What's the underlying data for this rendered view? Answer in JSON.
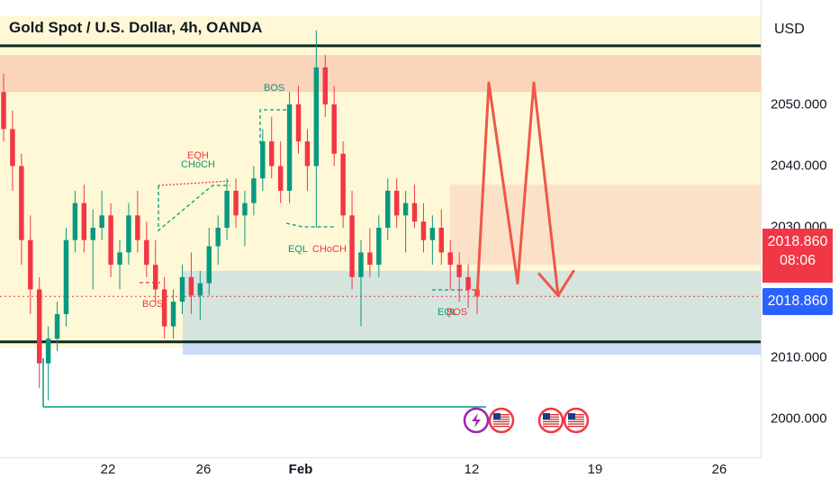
{
  "header": {
    "title": "Gold Spot / U.S. Dollar, 4h, OANDA"
  },
  "price_axis": {
    "currency": "USD",
    "ticks": [
      "2050.000",
      "2040.000",
      "2030.000",
      "2010.000",
      "2000.000"
    ],
    "last_price_label": "2018.860",
    "countdown_label": "08:06",
    "crosshair_price_label": "2018.860"
  },
  "time_axis": {
    "ticks": [
      "22",
      "26",
      "Feb",
      "12",
      "19",
      "26"
    ]
  },
  "annotations": {
    "bos_top": "BOS",
    "eqh": "EQH",
    "choch_left": "CHoCH",
    "bos_left": "BOS",
    "eql_mid": "EQL",
    "choch_mid": "CHoCH",
    "eql_right": "EQL",
    "bos_right": "BOS"
  },
  "event_icons": [
    "lightning-event-icon",
    "us-flag-event-icon",
    "us-flag-event-icon",
    "us-flag-event-icon"
  ],
  "colors": {
    "up_candle": "#089981",
    "down_candle": "#f23645",
    "premium_zone": "#f8c9b0",
    "discount_zone": "#c8dde0",
    "range_background": "#fff8d6",
    "projection": "#ef5747",
    "last_price": "#f23645",
    "crosshair_price": "#2962ff"
  },
  "chart_data": {
    "type": "candlestick",
    "symbol": "XAUUSD",
    "timeframe": "4h",
    "ylim": [
      1996,
      2062
    ],
    "y_ticks": [
      2000,
      2010,
      2030,
      2040,
      2050
    ],
    "x_ticks": [
      "22",
      "26",
      "Feb",
      "12",
      "19",
      "26"
    ],
    "last_price": 2018.86,
    "grid": false,
    "candles": [
      [
        2052,
        2055,
        2044,
        2046
      ],
      [
        2046,
        2049,
        2036,
        2040
      ],
      [
        2040,
        2042,
        2024,
        2028
      ],
      [
        2028,
        2032,
        2016,
        2020
      ],
      [
        2020,
        2022,
        2004,
        2008
      ],
      [
        2008,
        2014,
        2002,
        2012
      ],
      [
        2012,
        2018,
        2010,
        2016
      ],
      [
        2016,
        2030,
        2014,
        2028
      ],
      [
        2028,
        2036,
        2026,
        2034
      ],
      [
        2034,
        2037,
        2026,
        2028
      ],
      [
        2028,
        2033,
        2020,
        2030
      ],
      [
        2030,
        2036,
        2028,
        2032
      ],
      [
        2032,
        2034,
        2022,
        2024
      ],
      [
        2024,
        2028,
        2020,
        2026
      ],
      [
        2026,
        2034,
        2024,
        2032
      ],
      [
        2032,
        2036,
        2026,
        2028
      ],
      [
        2028,
        2031,
        2022,
        2024
      ],
      [
        2024,
        2028,
        2018,
        2020
      ],
      [
        2020,
        2022,
        2012,
        2014
      ],
      [
        2014,
        2020,
        2012,
        2018
      ],
      [
        2018,
        2024,
        2016,
        2022
      ],
      [
        2022,
        2026,
        2016,
        2019
      ],
      [
        2019,
        2023,
        2015,
        2021
      ],
      [
        2021,
        2030,
        2019,
        2027
      ],
      [
        2027,
        2032,
        2024,
        2030
      ],
      [
        2030,
        2038,
        2028,
        2036
      ],
      [
        2036,
        2038,
        2030,
        2032
      ],
      [
        2032,
        2036,
        2027,
        2034
      ],
      [
        2034,
        2040,
        2032,
        2038
      ],
      [
        2038,
        2046,
        2036,
        2044
      ],
      [
        2044,
        2048,
        2038,
        2040
      ],
      [
        2040,
        2044,
        2034,
        2036
      ],
      [
        2036,
        2052,
        2034,
        2050
      ],
      [
        2050,
        2053,
        2042,
        2044
      ],
      [
        2044,
        2046,
        2036,
        2040
      ],
      [
        2040,
        2062,
        2030,
        2056
      ],
      [
        2056,
        2058,
        2048,
        2050
      ],
      [
        2050,
        2053,
        2040,
        2042
      ],
      [
        2042,
        2044,
        2030,
        2032
      ],
      [
        2032,
        2036,
        2020,
        2022
      ],
      [
        2022,
        2028,
        2014,
        2026
      ],
      [
        2026,
        2030,
        2022,
        2024
      ],
      [
        2024,
        2032,
        2022,
        2030
      ],
      [
        2030,
        2038,
        2028,
        2036
      ],
      [
        2036,
        2038,
        2030,
        2032
      ],
      [
        2032,
        2036,
        2026,
        2034
      ],
      [
        2034,
        2037,
        2030,
        2031
      ],
      [
        2031,
        2034,
        2026,
        2028
      ],
      [
        2028,
        2032,
        2024,
        2030
      ],
      [
        2030,
        2033,
        2024,
        2026
      ],
      [
        2026,
        2028,
        2020,
        2024
      ],
      [
        2024,
        2026,
        2018,
        2022
      ],
      [
        2022,
        2024,
        2017,
        2020
      ],
      [
        2020,
        2022,
        2016,
        2018.86
      ]
    ],
    "zones": [
      {
        "name": "premium",
        "y0": 2052,
        "y1": 2058,
        "color": "#f8c9b0"
      },
      {
        "name": "supply",
        "y0": 2024,
        "y1": 2037,
        "color": "#fbd9c4"
      },
      {
        "name": "discount",
        "y0": 2010,
        "y1": 2023,
        "color": "#c8dde0"
      }
    ],
    "range_lines": [
      2059.5,
      2011.5
    ],
    "projection": [
      2018.86,
      2053.5,
      2021,
      2053.5,
      2019,
      2018.86
    ]
  }
}
